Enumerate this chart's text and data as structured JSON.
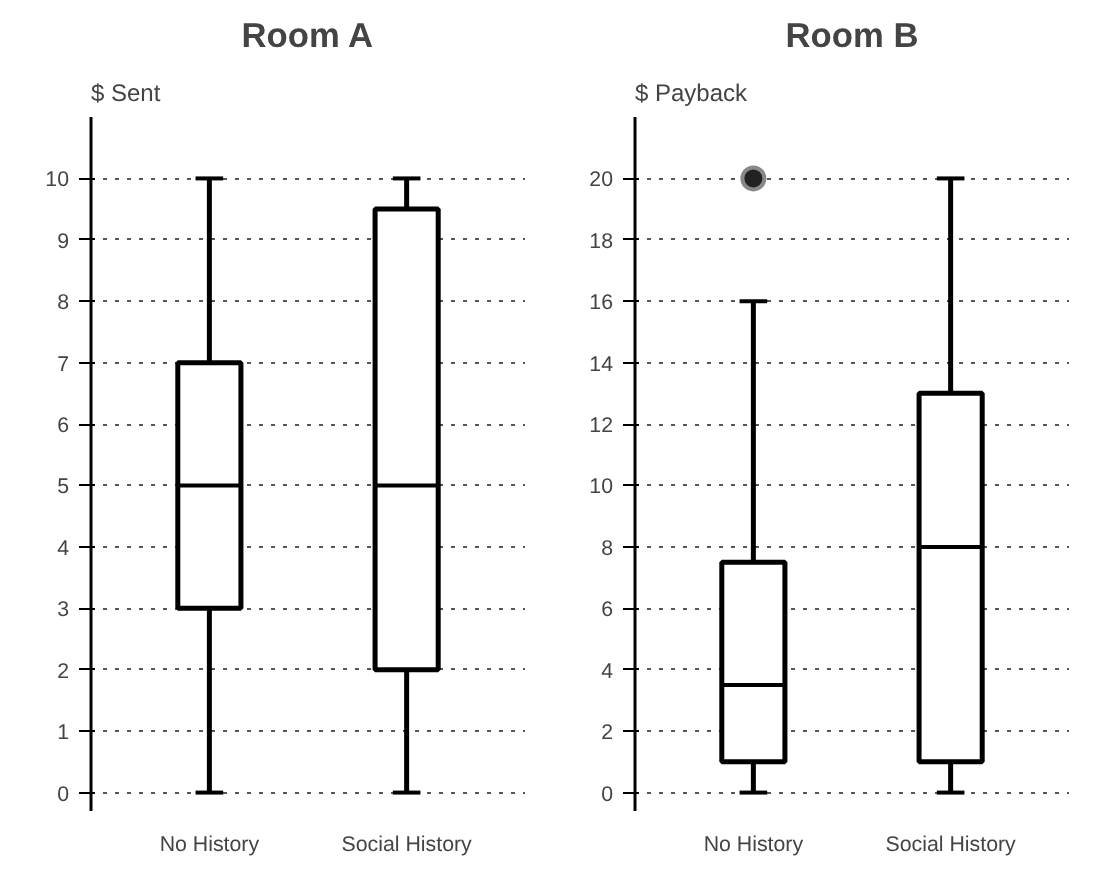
{
  "chart_data": [
    {
      "type": "box",
      "title": "Room A",
      "ylabel": "$ Sent",
      "categories": [
        "No History",
        "Social History"
      ],
      "ylim": [
        -0.3,
        11
      ],
      "yticks": [
        0,
        1,
        2,
        3,
        4,
        5,
        6,
        7,
        8,
        9,
        10
      ],
      "grid": "y",
      "boxes": [
        {
          "low": 0,
          "q1": 3,
          "median": 5,
          "q3": 7,
          "high": 10
        },
        {
          "low": 0,
          "q1": 2,
          "median": 5,
          "q3": 9.5,
          "high": 10
        }
      ]
    },
    {
      "type": "box",
      "title": "Room B",
      "ylabel": "$ Payback",
      "categories": [
        "No History",
        "Social History"
      ],
      "ylim": [
        -0.6,
        22
      ],
      "yticks": [
        0,
        2,
        4,
        6,
        8,
        10,
        12,
        14,
        16,
        18,
        20
      ],
      "grid": "y",
      "boxes": [
        {
          "low": 0,
          "q1": 1,
          "median": 3.5,
          "q3": 7.5,
          "high": 16,
          "outliers": [
            20
          ]
        },
        {
          "low": 0,
          "q1": 1,
          "median": 8,
          "q3": 13,
          "high": 20
        }
      ]
    }
  ]
}
